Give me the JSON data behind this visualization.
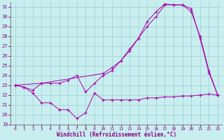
{
  "xlabel": "Windchill (Refroidissement éolien,°C)",
  "background_color": "#c8eef0",
  "grid_color": "#9ecfcf",
  "line_color": "#aa00aa",
  "xlim": [
    -0.5,
    23.5
  ],
  "ylim": [
    19,
    31.5
  ],
  "yticks": [
    19,
    20,
    21,
    22,
    23,
    24,
    25,
    26,
    27,
    28,
    29,
    30,
    31
  ],
  "xticks": [
    0,
    1,
    2,
    3,
    4,
    5,
    6,
    7,
    8,
    9,
    10,
    11,
    12,
    13,
    14,
    15,
    16,
    17,
    18,
    19,
    20,
    21,
    22,
    23
  ],
  "s1_x": [
    0,
    1,
    2,
    3,
    4,
    5,
    6,
    7,
    8,
    9,
    10,
    11,
    12,
    13,
    14,
    15,
    16,
    17,
    18,
    19,
    20,
    21,
    22,
    23
  ],
  "s1_y": [
    23.0,
    22.8,
    22.2,
    21.2,
    21.2,
    20.5,
    20.5,
    19.6,
    20.2,
    22.2,
    21.5,
    21.5,
    21.5,
    21.5,
    21.5,
    21.7,
    21.7,
    21.8,
    21.8,
    21.9,
    21.9,
    22.0,
    22.1,
    22.0
  ],
  "s2_x": [
    0,
    1,
    2,
    3,
    4,
    5,
    6,
    7,
    8,
    9,
    10,
    11,
    12,
    13,
    14,
    15,
    16,
    17,
    18,
    19,
    20,
    21,
    22,
    23
  ],
  "s2_y": [
    23.0,
    22.8,
    22.5,
    23.2,
    23.2,
    23.2,
    23.5,
    24.0,
    22.3,
    23.2,
    24.0,
    24.5,
    25.5,
    26.5,
    27.8,
    29.0,
    30.0,
    31.2,
    31.2,
    31.2,
    30.8,
    27.8,
    24.3,
    22.0
  ],
  "s3_x": [
    0,
    3,
    10,
    11,
    12,
    13,
    14,
    15,
    16,
    17,
    18,
    19,
    20,
    21,
    22,
    23
  ],
  "s3_y": [
    23.0,
    23.2,
    24.2,
    24.8,
    25.5,
    26.7,
    27.8,
    29.5,
    30.5,
    31.3,
    31.2,
    31.2,
    30.5,
    28.0,
    24.5,
    22.0
  ]
}
